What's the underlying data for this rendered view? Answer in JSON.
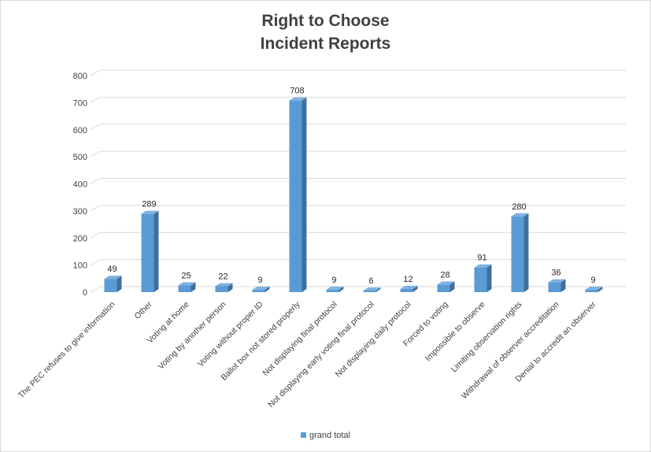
{
  "chart_data": {
    "type": "bar",
    "title_lines": [
      "Right to Choose",
      "Incident Reports"
    ],
    "categories": [
      "The PEC refuses to give information",
      "Other",
      "Voting at home",
      "Voting by another person",
      "Voting without proper ID",
      "Ballot box not stored properly",
      "Not displaying final protocol",
      "Not displaying early voting final protocol",
      "Not displaying daily protocol",
      "Forced to voting",
      "Impossible to observe",
      "Limiting observation rights",
      "Withdrawal of observer accreditation",
      "Denial to accredit an observer"
    ],
    "series": [
      {
        "name": "grand total",
        "values": [
          49,
          289,
          25,
          22,
          9,
          708,
          9,
          6,
          12,
          28,
          91,
          280,
          36,
          9
        ]
      }
    ],
    "ylim": [
      0,
      800
    ],
    "yticks": [
      0,
      100,
      200,
      300,
      400,
      500,
      600,
      700,
      800
    ],
    "grid": true,
    "legend_position": "bottom",
    "colors": {
      "front": "#5b9bd5",
      "side": "#3f6f9c",
      "top": "#7fb2e0",
      "grid": "#d9d9d9"
    }
  }
}
